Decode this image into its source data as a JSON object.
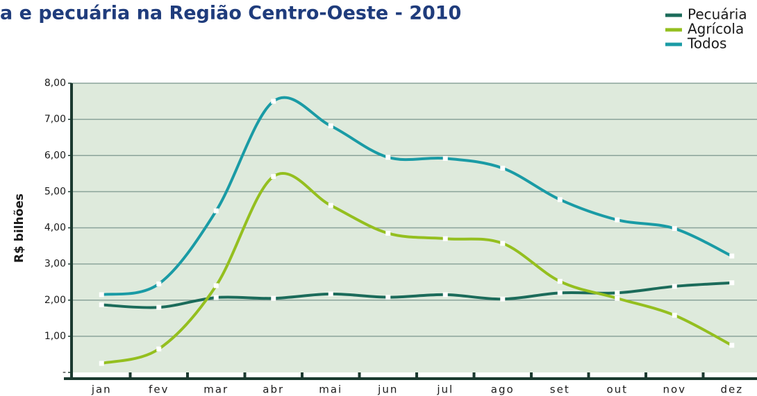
{
  "chart_data": {
    "type": "line",
    "title": "a e pecuária na Região Centro-Oeste - 2010",
    "y_label": "R$ bilhões",
    "categories": [
      "jan",
      "fev",
      "mar",
      "abr",
      "mai",
      "jun",
      "jul",
      "ago",
      "set",
      "out",
      "nov",
      "dez"
    ],
    "series": [
      {
        "name": "Pecuária",
        "color": "#1b6b5a",
        "values": [
          1.87,
          1.8,
          2.07,
          2.05,
          2.17,
          2.08,
          2.15,
          2.03,
          2.2,
          2.2,
          2.38,
          2.48
        ]
      },
      {
        "name": "Agrícola",
        "color": "#94bf1f",
        "values": [
          0.25,
          0.65,
          2.4,
          5.42,
          4.62,
          3.85,
          3.7,
          3.57,
          2.52,
          2.05,
          1.58,
          0.75
        ]
      },
      {
        "name": "Todos",
        "color": "#1a9ba5",
        "values": [
          2.15,
          2.45,
          4.47,
          7.5,
          6.82,
          5.95,
          5.92,
          5.65,
          4.78,
          4.22,
          3.98,
          3.22
        ]
      }
    ],
    "ylim": [
      0,
      8
    ],
    "yticks": [
      {
        "value": 0,
        "label": "-"
      },
      {
        "value": 1,
        "label": "1,00"
      },
      {
        "value": 2,
        "label": "2,00"
      },
      {
        "value": 3,
        "label": "3,00"
      },
      {
        "value": 4,
        "label": "4,00"
      },
      {
        "value": 5,
        "label": "5,00"
      },
      {
        "value": 6,
        "label": "6,00"
      },
      {
        "value": 7,
        "label": "7,00"
      },
      {
        "value": 8,
        "label": "8,00"
      }
    ],
    "grid": true
  }
}
